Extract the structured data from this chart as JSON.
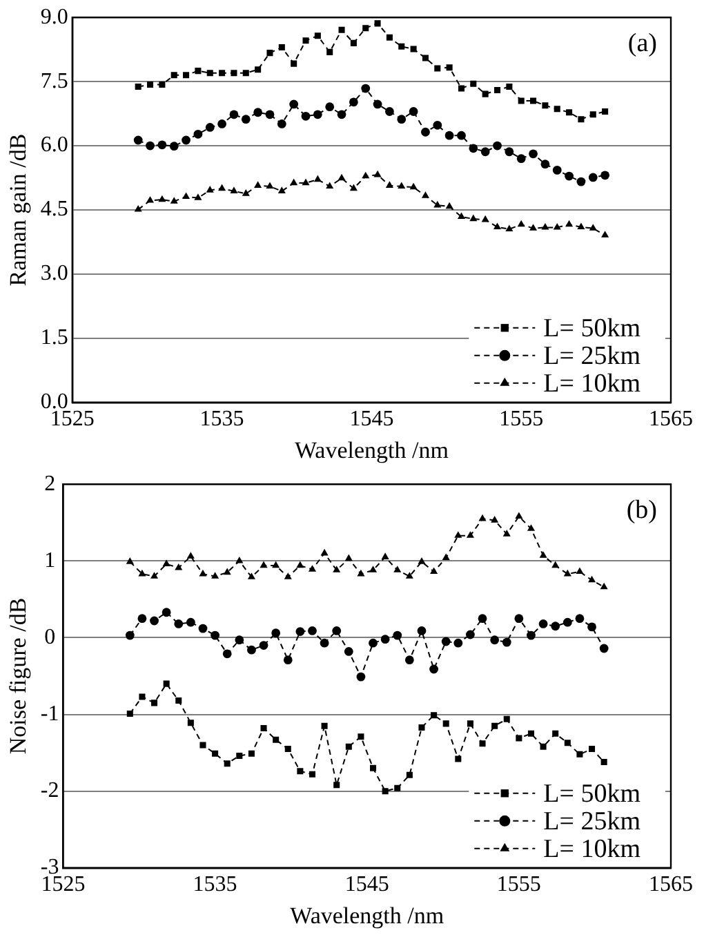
{
  "chart_data": [
    {
      "type": "line",
      "xlabel": "Wavelength /nm",
      "ylabel": "Raman gain /dB",
      "annotations": [
        "(a)"
      ],
      "xlim": [
        1525,
        1565
      ],
      "xticks": [
        1525,
        1535,
        1545,
        1555,
        1565
      ],
      "ylim": [
        0,
        9
      ],
      "yticks": [
        {
          "value": 0,
          "label": "0.0"
        },
        {
          "value": 1.5,
          "label": "1.5"
        },
        {
          "value": 3,
          "label": "3.0"
        },
        {
          "value": 4.5,
          "label": "4.5"
        },
        {
          "value": 6,
          "label": "6.0"
        },
        {
          "value": 7.5,
          "label": "7.5"
        },
        {
          "value": 9,
          "label": "9.0"
        }
      ],
      "grid": "y",
      "legend": "bottom right",
      "line_style": "dashed",
      "x": [
        1529.4,
        1530.2,
        1531.0,
        1531.8,
        1532.6,
        1533.4,
        1534.2,
        1535.0,
        1535.8,
        1536.6,
        1537.4,
        1538.2,
        1539.0,
        1539.8,
        1540.6,
        1541.4,
        1542.2,
        1543.0,
        1543.8,
        1544.6,
        1545.4,
        1546.2,
        1547.0,
        1547.8,
        1548.6,
        1549.4,
        1550.2,
        1551.0,
        1551.8,
        1552.6,
        1553.4,
        1554.2,
        1555.0,
        1555.8,
        1556.6,
        1557.4,
        1558.2,
        1559.0,
        1559.8,
        1560.6
      ],
      "series": [
        {
          "name": "L= 50km",
          "color": "#000000",
          "marker": "square",
          "values": [
            7.38,
            7.43,
            7.43,
            7.65,
            7.65,
            7.75,
            7.7,
            7.7,
            7.7,
            7.7,
            7.78,
            8.17,
            8.3,
            7.92,
            8.46,
            8.57,
            8.19,
            8.71,
            8.4,
            8.75,
            8.86,
            8.53,
            8.32,
            8.26,
            8.05,
            7.81,
            7.83,
            7.34,
            7.45,
            7.21,
            7.3,
            7.38,
            7.05,
            7.05,
            6.94,
            6.86,
            6.78,
            6.62,
            6.73,
            6.8
          ]
        },
        {
          "name": "L= 25km",
          "color": "#000000",
          "marker": "circle",
          "values": [
            6.13,
            6.0,
            6.02,
            5.99,
            6.13,
            6.27,
            6.43,
            6.51,
            6.73,
            6.62,
            6.78,
            6.73,
            6.51,
            6.97,
            6.69,
            6.73,
            6.91,
            6.73,
            7.02,
            7.34,
            6.97,
            6.8,
            6.62,
            6.8,
            6.32,
            6.48,
            6.24,
            6.24,
            5.94,
            5.86,
            6.0,
            5.86,
            5.7,
            5.81,
            5.57,
            5.43,
            5.29,
            5.16,
            5.26,
            5.31
          ]
        },
        {
          "name": "L= 10km",
          "color": "#000000",
          "marker": "triangle",
          "values": [
            4.51,
            4.72,
            4.74,
            4.7,
            4.81,
            4.78,
            4.96,
            5.0,
            4.94,
            4.88,
            5.07,
            5.05,
            4.94,
            5.13,
            5.13,
            5.21,
            5.05,
            5.24,
            5.0,
            5.29,
            5.32,
            5.07,
            5.05,
            5.03,
            4.83,
            4.61,
            4.58,
            4.34,
            4.29,
            4.27,
            4.1,
            4.05,
            4.16,
            4.07,
            4.09,
            4.09,
            4.16,
            4.1,
            4.07,
            3.91
          ]
        }
      ]
    },
    {
      "type": "line",
      "xlabel": "Wavelength /nm",
      "ylabel": "Noise figure /dB",
      "annotations": [
        "(b)"
      ],
      "xlim": [
        1525,
        1565
      ],
      "xticks": [
        1525,
        1535,
        1545,
        1555,
        1565
      ],
      "ylim": [
        -3,
        2
      ],
      "yticks": [
        -3,
        -2,
        -1,
        0,
        1,
        2
      ],
      "grid": "y",
      "legend": "bottom right",
      "line_style": "dashed",
      "x": [
        1529.4,
        1530.2,
        1531.0,
        1531.8,
        1532.6,
        1533.4,
        1534.2,
        1535.0,
        1535.8,
        1536.6,
        1537.4,
        1538.2,
        1539.0,
        1539.8,
        1540.6,
        1541.4,
        1542.2,
        1543.0,
        1543.8,
        1544.6,
        1545.4,
        1546.2,
        1547.0,
        1547.8,
        1548.6,
        1549.4,
        1550.2,
        1551.0,
        1551.8,
        1552.6,
        1553.4,
        1554.2,
        1555.0,
        1555.8,
        1556.6,
        1557.4,
        1558.2,
        1559.0,
        1559.8,
        1560.6
      ],
      "series": [
        {
          "name": "L= 50km",
          "color": "#000000",
          "marker": "square",
          "values": [
            -0.99,
            -0.77,
            -0.85,
            -0.6,
            -0.82,
            -1.11,
            -1.4,
            -1.51,
            -1.64,
            -1.54,
            -1.51,
            -1.18,
            -1.33,
            -1.45,
            -1.74,
            -1.78,
            -1.15,
            -1.92,
            -1.42,
            -1.29,
            -1.7,
            -2.0,
            -1.96,
            -1.79,
            -1.17,
            -1.01,
            -1.12,
            -1.58,
            -1.12,
            -1.38,
            -1.15,
            -1.06,
            -1.31,
            -1.25,
            -1.42,
            -1.25,
            -1.37,
            -1.52,
            -1.45,
            -1.62
          ]
        },
        {
          "name": "L= 25km",
          "color": "#000000",
          "marker": "circle",
          "values": [
            0.03,
            0.25,
            0.22,
            0.33,
            0.18,
            0.2,
            0.12,
            0.03,
            -0.21,
            -0.03,
            -0.16,
            -0.1,
            0.06,
            -0.29,
            0.08,
            0.09,
            -0.07,
            0.09,
            -0.18,
            -0.51,
            -0.07,
            -0.02,
            0.03,
            -0.29,
            0.09,
            -0.41,
            -0.05,
            -0.07,
            0.04,
            0.25,
            -0.03,
            -0.06,
            0.25,
            0.03,
            0.18,
            0.15,
            0.2,
            0.25,
            0.14,
            -0.14
          ]
        },
        {
          "name": "L= 10km",
          "color": "#000000",
          "marker": "triangle",
          "values": [
            0.99,
            0.83,
            0.8,
            0.96,
            0.91,
            1.06,
            0.83,
            0.8,
            0.85,
            1.0,
            0.79,
            0.94,
            0.94,
            0.79,
            0.94,
            0.89,
            1.1,
            0.88,
            1.03,
            0.83,
            0.88,
            1.05,
            0.88,
            0.8,
            0.99,
            0.86,
            1.04,
            1.33,
            1.33,
            1.55,
            1.53,
            1.35,
            1.58,
            1.42,
            1.07,
            0.94,
            0.83,
            0.86,
            0.75,
            0.66
          ]
        }
      ]
    }
  ]
}
